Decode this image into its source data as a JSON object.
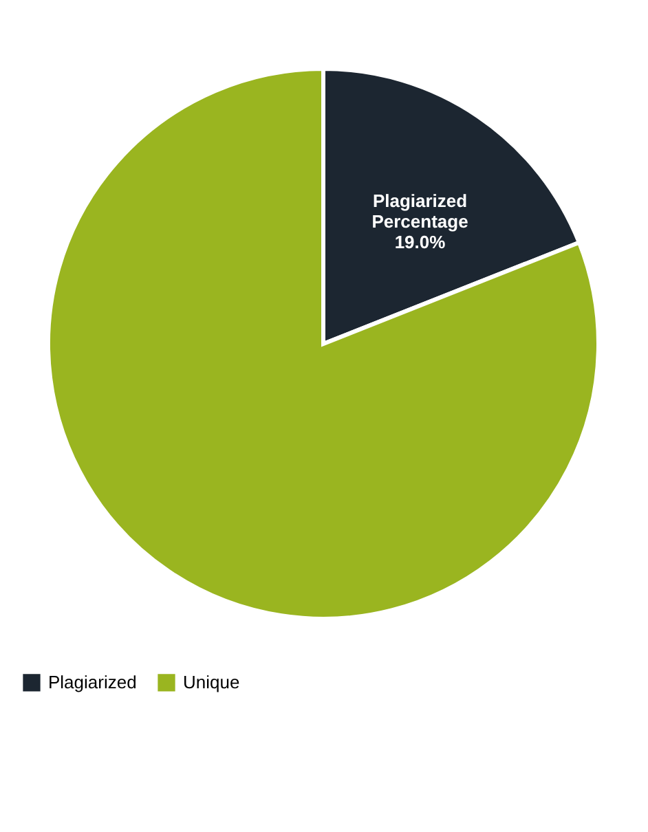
{
  "chart_data": {
    "type": "pie",
    "categories": [
      "Plagiarized",
      "Unique"
    ],
    "values": [
      19,
      81
    ],
    "colors": [
      "#1c2631",
      "#9ab520"
    ],
    "value_labels": [
      "Plagiarized Percentage 19.0%",
      null
    ],
    "legend": "bottom"
  }
}
